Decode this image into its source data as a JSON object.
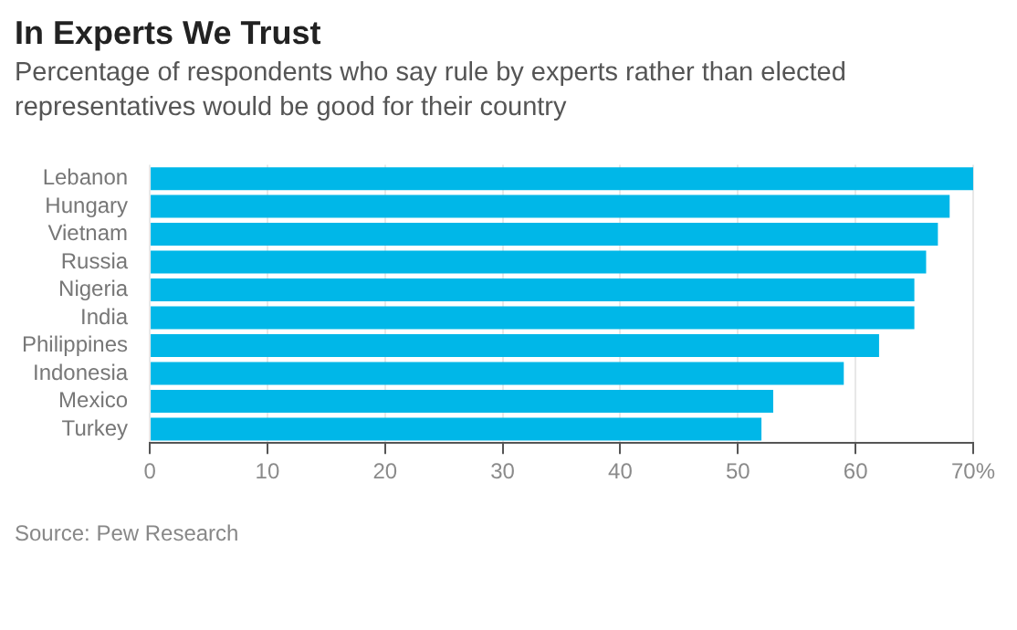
{
  "chart_data": {
    "type": "bar",
    "orientation": "horizontal",
    "title": "In Experts We Trust",
    "subtitle": "Percentage of respondents who say rule by experts rather than elected representatives would be good for their country",
    "categories": [
      "Lebanon",
      "Hungary",
      "Vietnam",
      "Russia",
      "Nigeria",
      "India",
      "Philippines",
      "Indonesia",
      "Mexico",
      "Turkey"
    ],
    "values": [
      70,
      68,
      67,
      66,
      65,
      65,
      62,
      59,
      53,
      52
    ],
    "color": "#00b7e8",
    "xlim": [
      0,
      70
    ],
    "xticks": [
      0,
      10,
      20,
      30,
      40,
      50,
      60,
      {
        "value": 70,
        "label": "70%"
      }
    ],
    "grid": "x",
    "annotations": [
      "Source: Pew Research"
    ]
  }
}
